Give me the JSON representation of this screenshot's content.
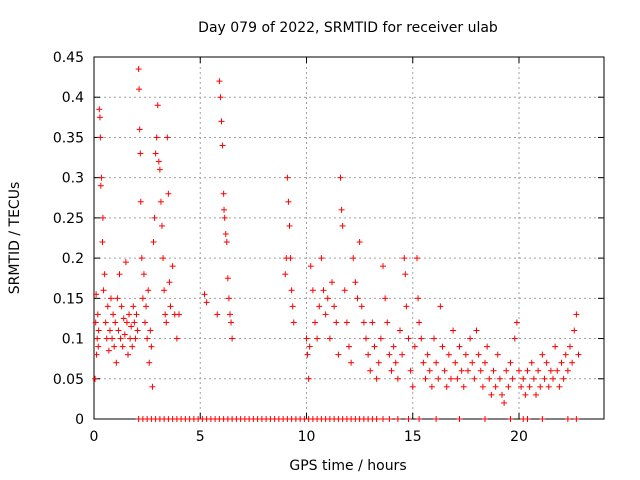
{
  "chart_data": {
    "type": "scatter",
    "title": "Day 079 of 2022, SRMTID for receiver ulab",
    "xlabel": "GPS time / hours",
    "ylabel": "SRMTID / TECUs",
    "xlim": [
      0,
      24
    ],
    "ylim": [
      0,
      0.45
    ],
    "xticks": [
      0,
      5,
      10,
      15,
      20
    ],
    "xtick_labels": [
      "0",
      "5",
      "10",
      "15",
      "20"
    ],
    "yticks": [
      0,
      0.05,
      0.1,
      0.15,
      0.2,
      0.25,
      0.3,
      0.35,
      0.4,
      0.45
    ],
    "ytick_labels": [
      "0",
      "0.05",
      "0.1",
      "0.15",
      "0.2",
      "0.25",
      "0.3",
      "0.35",
      "0.4",
      "0.45"
    ],
    "grid": true,
    "marker": "plus",
    "color": "#ff0000",
    "series": [
      {
        "name": "SRMTID",
        "points": [
          [
            0.05,
            0.05
          ],
          [
            0.08,
            0.12
          ],
          [
            0.1,
            0.155
          ],
          [
            0.12,
            0.08
          ],
          [
            0.15,
            0.1
          ],
          [
            0.18,
            0.13
          ],
          [
            0.2,
            0.09
          ],
          [
            0.22,
            0.11
          ],
          [
            0.25,
            0.385
          ],
          [
            0.28,
            0.375
          ],
          [
            0.3,
            0.35
          ],
          [
            0.32,
            0.29
          ],
          [
            0.35,
            0.3
          ],
          [
            0.4,
            0.22
          ],
          [
            0.42,
            0.25
          ],
          [
            0.45,
            0.16
          ],
          [
            0.5,
            0.18
          ],
          [
            0.55,
            0.12
          ],
          [
            0.6,
            0.1
          ],
          [
            0.65,
            0.14
          ],
          [
            0.7,
            0.085
          ],
          [
            0.75,
            0.11
          ],
          [
            0.8,
            0.15
          ],
          [
            0.85,
            0.1
          ],
          [
            0.9,
            0.13
          ],
          [
            0.95,
            0.09
          ],
          [
            1.0,
            0.12
          ],
          [
            1.05,
            0.07
          ],
          [
            1.1,
            0.15
          ],
          [
            1.15,
            0.11
          ],
          [
            1.2,
            0.18
          ],
          [
            1.25,
            0.1
          ],
          [
            1.3,
            0.14
          ],
          [
            1.35,
            0.09
          ],
          [
            1.4,
            0.125
          ],
          [
            1.45,
            0.105
          ],
          [
            1.5,
            0.195
          ],
          [
            1.55,
            0.12
          ],
          [
            1.6,
            0.08
          ],
          [
            1.65,
            0.13
          ],
          [
            1.7,
            0.1
          ],
          [
            1.75,
            0.115
          ],
          [
            1.8,
            0.09
          ],
          [
            1.85,
            0.14
          ],
          [
            1.9,
            0.12
          ],
          [
            1.95,
            0.1
          ],
          [
            2.0,
            0.13
          ],
          [
            2.05,
            0.11
          ],
          [
            2.1,
            0.435
          ],
          [
            2.12,
            0.41
          ],
          [
            2.15,
            0.36
          ],
          [
            2.18,
            0.33
          ],
          [
            2.2,
            0.27
          ],
          [
            2.25,
            0.2
          ],
          [
            2.3,
            0.15
          ],
          [
            2.35,
            0.18
          ],
          [
            2.4,
            0.12
          ],
          [
            2.45,
            0.14
          ],
          [
            2.5,
            0.1
          ],
          [
            2.55,
            0.16
          ],
          [
            2.6,
            0.07
          ],
          [
            2.65,
            0.11
          ],
          [
            2.7,
            0.09
          ],
          [
            2.75,
            0.04
          ],
          [
            2.8,
            0.22
          ],
          [
            2.85,
            0.25
          ],
          [
            2.9,
            0.33
          ],
          [
            2.95,
            0.35
          ],
          [
            3.0,
            0.39
          ],
          [
            3.05,
            0.32
          ],
          [
            3.1,
            0.31
          ],
          [
            3.15,
            0.27
          ],
          [
            3.2,
            0.24
          ],
          [
            3.25,
            0.2
          ],
          [
            3.3,
            0.16
          ],
          [
            3.35,
            0.13
          ],
          [
            3.4,
            0.12
          ],
          [
            3.45,
            0.35
          ],
          [
            3.5,
            0.28
          ],
          [
            3.55,
            0.17
          ],
          [
            3.6,
            0.14
          ],
          [
            3.7,
            0.19
          ],
          [
            3.8,
            0.13
          ],
          [
            3.9,
            0.1
          ],
          [
            4.0,
            0.13
          ],
          [
            5.2,
            0.155
          ],
          [
            5.3,
            0.145
          ],
          [
            5.8,
            0.13
          ],
          [
            5.9,
            0.42
          ],
          [
            5.95,
            0.4
          ],
          [
            6.0,
            0.37
          ],
          [
            6.05,
            0.34
          ],
          [
            6.1,
            0.28
          ],
          [
            6.12,
            0.26
          ],
          [
            6.15,
            0.25
          ],
          [
            6.2,
            0.23
          ],
          [
            6.25,
            0.22
          ],
          [
            6.3,
            0.175
          ],
          [
            6.35,
            0.15
          ],
          [
            6.4,
            0.13
          ],
          [
            6.45,
            0.12
          ],
          [
            6.5,
            0.1
          ],
          [
            9.0,
            0.18
          ],
          [
            9.05,
            0.2
          ],
          [
            9.1,
            0.3
          ],
          [
            9.15,
            0.27
          ],
          [
            9.2,
            0.24
          ],
          [
            9.25,
            0.2
          ],
          [
            9.3,
            0.16
          ],
          [
            9.35,
            0.14
          ],
          [
            9.4,
            0.12
          ],
          [
            10.0,
            0.1
          ],
          [
            10.05,
            0.08
          ],
          [
            10.1,
            0.05
          ],
          [
            10.15,
            0.09
          ],
          [
            10.2,
            0.19
          ],
          [
            10.3,
            0.16
          ],
          [
            10.4,
            0.12
          ],
          [
            10.5,
            0.1
          ],
          [
            10.6,
            0.14
          ],
          [
            10.7,
            0.2
          ],
          [
            10.8,
            0.16
          ],
          [
            10.9,
            0.13
          ],
          [
            11.0,
            0.15
          ],
          [
            11.1,
            0.1
          ],
          [
            11.2,
            0.17
          ],
          [
            11.3,
            0.14
          ],
          [
            11.4,
            0.12
          ],
          [
            11.5,
            0.08
          ],
          [
            11.6,
            0.3
          ],
          [
            11.65,
            0.26
          ],
          [
            11.7,
            0.24
          ],
          [
            11.8,
            0.16
          ],
          [
            11.9,
            0.12
          ],
          [
            12.0,
            0.09
          ],
          [
            12.1,
            0.07
          ],
          [
            12.2,
            0.2
          ],
          [
            12.3,
            0.17
          ],
          [
            12.4,
            0.15
          ],
          [
            12.5,
            0.22
          ],
          [
            12.6,
            0.14
          ],
          [
            12.7,
            0.12
          ],
          [
            12.8,
            0.1
          ],
          [
            12.9,
            0.08
          ],
          [
            13.0,
            0.06
          ],
          [
            13.1,
            0.12
          ],
          [
            13.2,
            0.09
          ],
          [
            13.3,
            0.05
          ],
          [
            13.4,
            0.07
          ],
          [
            13.5,
            0.1
          ],
          [
            13.6,
            0.19
          ],
          [
            13.7,
            0.15
          ],
          [
            13.8,
            0.12
          ],
          [
            13.9,
            0.08
          ],
          [
            14.0,
            0.06
          ],
          [
            14.1,
            0.09
          ],
          [
            14.2,
            0.07
          ],
          [
            14.3,
            0.05
          ],
          [
            14.4,
            0.11
          ],
          [
            14.5,
            0.08
          ],
          [
            14.6,
            0.2
          ],
          [
            14.65,
            0.18
          ],
          [
            14.7,
            0.14
          ],
          [
            14.8,
            0.1
          ],
          [
            14.9,
            0.06
          ],
          [
            15.0,
            0.04
          ],
          [
            15.1,
            0.09
          ],
          [
            15.2,
            0.2
          ],
          [
            15.25,
            0.15
          ],
          [
            15.3,
            0.12
          ],
          [
            15.4,
            0.1
          ],
          [
            15.5,
            0.07
          ],
          [
            15.6,
            0.05
          ],
          [
            15.7,
            0.08
          ],
          [
            15.8,
            0.06
          ],
          [
            15.9,
            0.04
          ],
          [
            16.0,
            0.1
          ],
          [
            16.1,
            0.07
          ],
          [
            16.2,
            0.05
          ],
          [
            16.3,
            0.14
          ],
          [
            16.4,
            0.09
          ],
          [
            16.5,
            0.06
          ],
          [
            16.6,
            0.04
          ],
          [
            16.7,
            0.08
          ],
          [
            16.8,
            0.05
          ],
          [
            16.9,
            0.11
          ],
          [
            17.0,
            0.07
          ],
          [
            17.1,
            0.05
          ],
          [
            17.2,
            0.09
          ],
          [
            17.3,
            0.06
          ],
          [
            17.4,
            0.04
          ],
          [
            17.5,
            0.08
          ],
          [
            17.6,
            0.06
          ],
          [
            17.7,
            0.1
          ],
          [
            17.8,
            0.07
          ],
          [
            17.9,
            0.05
          ],
          [
            18.0,
            0.11
          ],
          [
            18.1,
            0.08
          ],
          [
            18.2,
            0.06
          ],
          [
            18.3,
            0.04
          ],
          [
            18.4,
            0.07
          ],
          [
            18.5,
            0.09
          ],
          [
            18.6,
            0.05
          ],
          [
            18.7,
            0.03
          ],
          [
            18.8,
            0.06
          ],
          [
            18.9,
            0.04
          ],
          [
            19.0,
            0.08
          ],
          [
            19.1,
            0.05
          ],
          [
            19.2,
            0.03
          ],
          [
            19.3,
            0.02
          ],
          [
            19.4,
            0.06
          ],
          [
            19.5,
            0.04
          ],
          [
            19.6,
            0.07
          ],
          [
            19.7,
            0.05
          ],
          [
            19.8,
            0.1
          ],
          [
            19.9,
            0.12
          ],
          [
            20.0,
            0.06
          ],
          [
            20.1,
            0.04
          ],
          [
            20.2,
            0.05
          ],
          [
            20.3,
            0.03
          ],
          [
            20.4,
            0.06
          ],
          [
            20.5,
            0.04
          ],
          [
            20.6,
            0.07
          ],
          [
            20.7,
            0.05
          ],
          [
            20.8,
            0.03
          ],
          [
            20.9,
            0.06
          ],
          [
            21.0,
            0.04
          ],
          [
            21.1,
            0.08
          ],
          [
            21.2,
            0.05
          ],
          [
            21.3,
            0.07
          ],
          [
            21.4,
            0.04
          ],
          [
            21.5,
            0.06
          ],
          [
            21.6,
            0.05
          ],
          [
            21.7,
            0.09
          ],
          [
            21.8,
            0.06
          ],
          [
            21.9,
            0.04
          ],
          [
            22.0,
            0.07
          ],
          [
            22.1,
            0.05
          ],
          [
            22.2,
            0.08
          ],
          [
            22.3,
            0.06
          ],
          [
            22.4,
            0.09
          ],
          [
            22.5,
            0.07
          ],
          [
            22.6,
            0.11
          ],
          [
            22.7,
            0.13
          ],
          [
            22.8,
            0.08
          ],
          [
            2.1,
            0
          ],
          [
            2.3,
            0
          ],
          [
            2.5,
            0
          ],
          [
            2.7,
            0
          ],
          [
            2.9,
            0
          ],
          [
            3.1,
            0
          ],
          [
            3.3,
            0
          ],
          [
            3.5,
            0
          ],
          [
            3.7,
            0
          ],
          [
            3.9,
            0
          ],
          [
            4.1,
            0
          ],
          [
            4.3,
            0
          ],
          [
            4.5,
            0
          ],
          [
            4.7,
            0
          ],
          [
            4.9,
            0
          ],
          [
            5.1,
            0
          ],
          [
            5.3,
            0
          ],
          [
            5.5,
            0
          ],
          [
            5.7,
            0
          ],
          [
            5.9,
            0
          ],
          [
            6.1,
            0
          ],
          [
            6.3,
            0
          ],
          [
            6.5,
            0
          ],
          [
            6.7,
            0
          ],
          [
            6.9,
            0
          ],
          [
            7.1,
            0
          ],
          [
            7.3,
            0
          ],
          [
            7.5,
            0
          ],
          [
            7.7,
            0
          ],
          [
            7.9,
            0
          ],
          [
            8.1,
            0
          ],
          [
            8.3,
            0
          ],
          [
            8.5,
            0
          ],
          [
            8.7,
            0
          ],
          [
            8.9,
            0
          ],
          [
            9.1,
            0
          ],
          [
            9.3,
            0
          ],
          [
            9.5,
            0
          ],
          [
            9.7,
            0
          ],
          [
            9.9,
            0
          ],
          [
            10.1,
            0
          ],
          [
            10.3,
            0
          ],
          [
            10.5,
            0
          ],
          [
            10.7,
            0
          ],
          [
            10.9,
            0
          ],
          [
            11.1,
            0
          ],
          [
            11.3,
            0
          ],
          [
            11.5,
            0
          ],
          [
            11.7,
            0
          ],
          [
            11.9,
            0
          ],
          [
            12.1,
            0
          ],
          [
            12.3,
            0
          ],
          [
            12.5,
            0
          ],
          [
            12.7,
            0
          ],
          [
            12.9,
            0
          ],
          [
            13.1,
            0
          ],
          [
            13.3,
            0
          ],
          [
            13.6,
            0
          ],
          [
            13.9,
            0
          ],
          [
            14.3,
            0
          ],
          [
            14.8,
            0
          ],
          [
            15.3,
            0
          ],
          [
            16.1,
            0
          ],
          [
            17.2,
            0
          ],
          [
            18.4,
            0
          ],
          [
            19.6,
            0
          ],
          [
            20.2,
            0
          ],
          [
            20.4,
            0
          ],
          [
            21.1,
            0
          ],
          [
            22.3,
            0
          ],
          [
            22.7,
            0
          ]
        ]
      }
    ]
  }
}
